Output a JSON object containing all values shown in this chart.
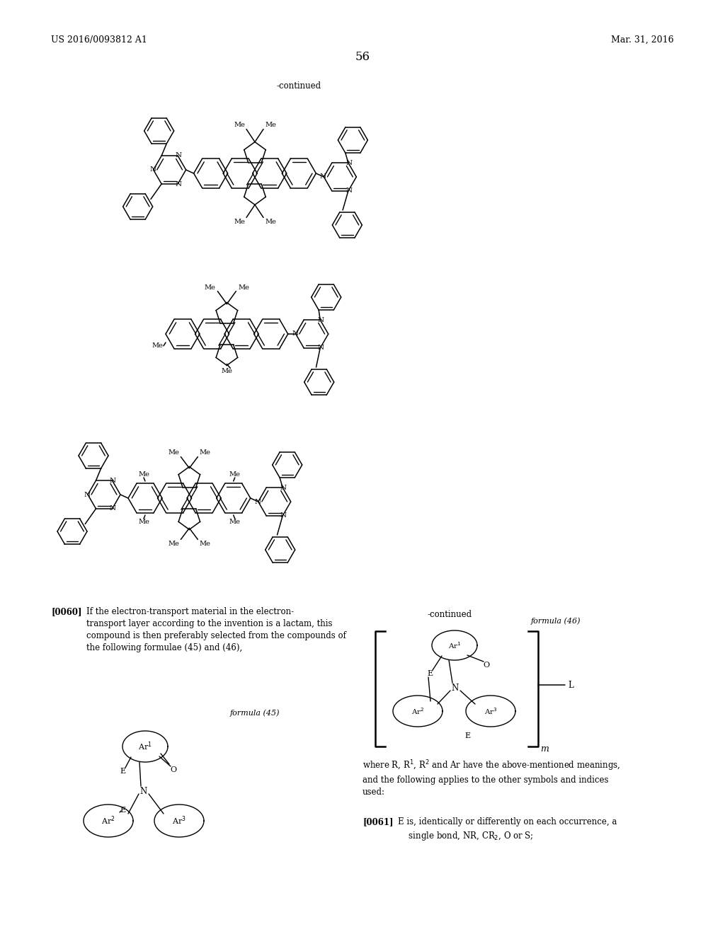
{
  "bg": "#ffffff",
  "header_left": "US 2016/0093812 A1",
  "header_right": "Mar. 31, 2016",
  "page_num": "56",
  "continued_top": "-continued",
  "continued_mid": "-continued",
  "formula45": "formula (45)",
  "formula46": "formula (46)",
  "p60_bold": "[0060]",
  "p60_text": "If the electron-transport material in the electron-\ntransport layer according to the invention is a lactam, this\ncompound is then preferably selected from the compounds of\nthe following formulae (45) and (46),",
  "p61_bold": "[0061]",
  "p61_text": "E is, identically or differently on each occurrence, a\n    single bond, NR, CR₂, O or S;"
}
